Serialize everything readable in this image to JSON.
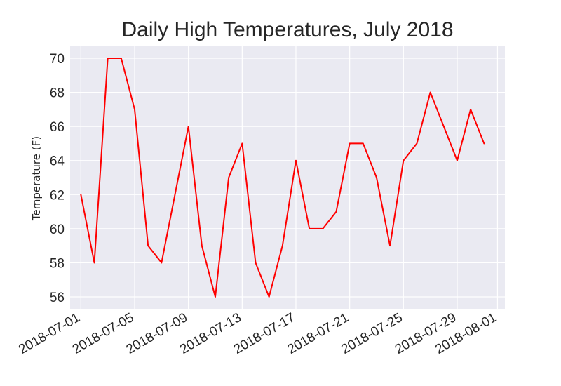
{
  "chart_data": {
    "type": "line",
    "title": "Daily High Temperatures, July 2018",
    "xlabel": "",
    "ylabel": "Temperature (F)",
    "x": [
      "2018-07-01",
      "2018-07-02",
      "2018-07-03",
      "2018-07-04",
      "2018-07-05",
      "2018-07-06",
      "2018-07-07",
      "2018-07-08",
      "2018-07-09",
      "2018-07-10",
      "2018-07-11",
      "2018-07-12",
      "2018-07-13",
      "2018-07-14",
      "2018-07-15",
      "2018-07-16",
      "2018-07-17",
      "2018-07-18",
      "2018-07-19",
      "2018-07-20",
      "2018-07-21",
      "2018-07-22",
      "2018-07-23",
      "2018-07-24",
      "2018-07-25",
      "2018-07-26",
      "2018-07-27",
      "2018-07-28",
      "2018-07-29",
      "2018-07-30",
      "2018-07-31"
    ],
    "series": [
      {
        "values": [
          62,
          58,
          70,
          70,
          67,
          59,
          58,
          62,
          66,
          59,
          56,
          63,
          65,
          58,
          56,
          59,
          64,
          60,
          60,
          61,
          65,
          65,
          63,
          59,
          64,
          65,
          68,
          66,
          64,
          67,
          65
        ],
        "color": "#ff0000"
      }
    ],
    "x_ticks": [
      "2018-07-01",
      "2018-07-05",
      "2018-07-09",
      "2018-07-13",
      "2018-07-17",
      "2018-07-21",
      "2018-07-25",
      "2018-07-29",
      "2018-08-01"
    ],
    "y_ticks": [
      56,
      58,
      60,
      62,
      64,
      66,
      68,
      70
    ],
    "xlim": [
      "2018-06-30",
      "2018-08-01"
    ],
    "ylim": [
      55.3,
      70.7
    ],
    "grid": true,
    "legend": "none",
    "style": {
      "background": "#eaeaf2",
      "grid_color": "#ffffff",
      "line_color": "#ff0000"
    }
  }
}
